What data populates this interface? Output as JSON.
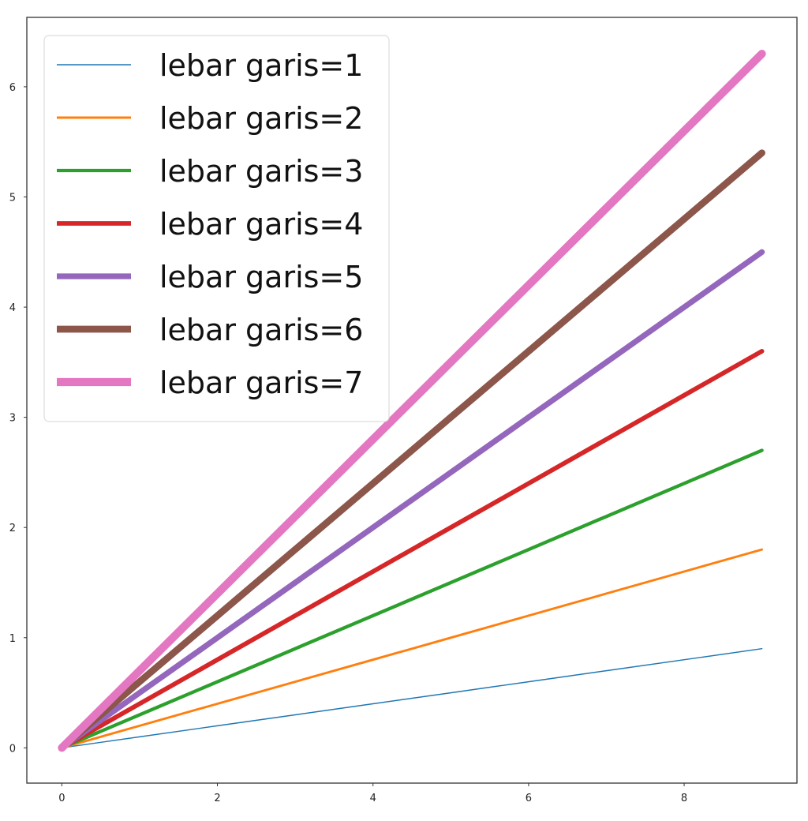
{
  "chart_data": {
    "type": "line",
    "title": "",
    "xlabel": "",
    "ylabel": "",
    "xlim": [
      -0.45,
      9.45
    ],
    "ylim": [
      -0.32,
      6.63
    ],
    "grid": false,
    "legend_position": "top-left",
    "x": [
      0,
      1,
      2,
      3,
      4,
      5,
      6,
      7,
      8,
      9
    ],
    "x_ticks": [
      0,
      2,
      4,
      6,
      8
    ],
    "y_ticks": [
      0,
      1,
      2,
      3,
      4,
      5,
      6
    ],
    "series": [
      {
        "name": "lebar garis=1",
        "color": "#1f77b4",
        "line_width": 1,
        "values": [
          0,
          0.1,
          0.2,
          0.3,
          0.4,
          0.5,
          0.6,
          0.7,
          0.8,
          0.9
        ]
      },
      {
        "name": "lebar garis=2",
        "color": "#ff7f0e",
        "line_width": 2,
        "values": [
          0,
          0.2,
          0.4,
          0.6,
          0.8,
          1.0,
          1.2,
          1.4,
          1.6,
          1.8
        ]
      },
      {
        "name": "lebar garis=3",
        "color": "#2ca02c",
        "line_width": 3,
        "values": [
          0,
          0.3,
          0.6,
          0.9,
          1.2,
          1.5,
          1.8,
          2.1,
          2.4,
          2.7
        ]
      },
      {
        "name": "lebar garis=4",
        "color": "#d62728",
        "line_width": 4,
        "values": [
          0,
          0.4,
          0.8,
          1.2,
          1.6,
          2.0,
          2.4,
          2.8,
          3.2,
          3.6
        ]
      },
      {
        "name": "lebar garis=5",
        "color": "#9467bd",
        "line_width": 5,
        "values": [
          0,
          0.5,
          1.0,
          1.5,
          2.0,
          2.5,
          3.0,
          3.5,
          4.0,
          4.5
        ]
      },
      {
        "name": "lebar garis=6",
        "color": "#8c564b",
        "line_width": 6,
        "values": [
          0,
          0.6,
          1.2,
          1.8,
          2.4,
          3.0,
          3.6,
          4.2,
          4.8,
          5.4
        ]
      },
      {
        "name": "lebar garis=7",
        "color": "#e377c2",
        "line_width": 7,
        "values": [
          0,
          0.7,
          1.4,
          2.1,
          2.8,
          3.5,
          4.2,
          4.9,
          5.6,
          6.3
        ]
      }
    ]
  }
}
